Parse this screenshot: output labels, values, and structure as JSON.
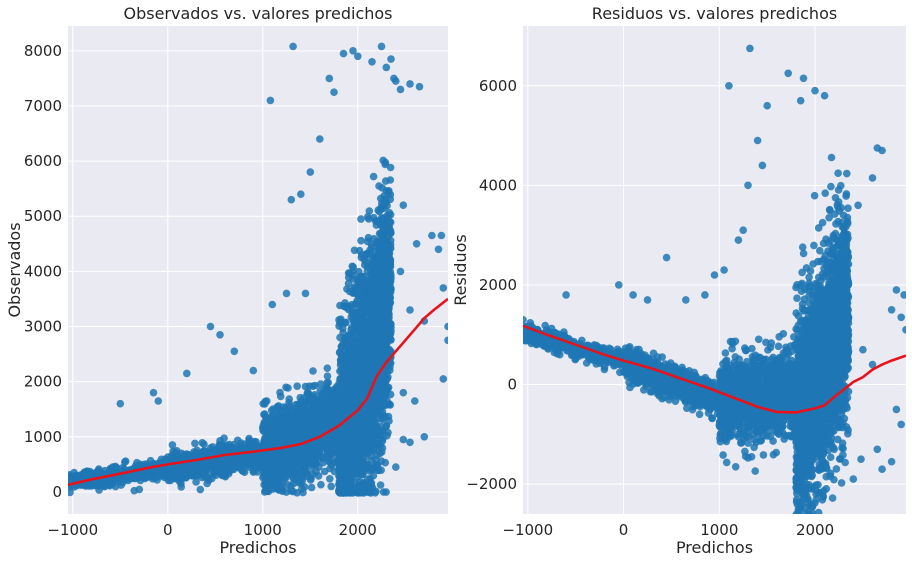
{
  "chart_data": [
    {
      "type": "scatter",
      "title": "Observados vs. valores predichos",
      "xlabel": "Predichos",
      "ylabel": "Observados",
      "xlim": [
        -1050,
        2950
      ],
      "ylim": [
        -400,
        8450
      ],
      "xticks": [
        -1000,
        0,
        1000,
        2000
      ],
      "yticks": [
        0,
        1000,
        2000,
        3000,
        4000,
        5000,
        6000,
        7000,
        8000
      ],
      "grid": true,
      "background_color": "#eaeaf2",
      "point_color": "#1f77b4",
      "line_color": "#e8121a",
      "trend_line": {
        "x": [
          -1050,
          -800,
          -500,
          -200,
          0,
          300,
          600,
          900,
          1200,
          1400,
          1600,
          1800,
          2000,
          2100,
          2200,
          2300,
          2400,
          2500,
          2600,
          2700,
          2800,
          2950
        ],
        "y": [
          130,
          230,
          330,
          440,
          500,
          580,
          670,
          730,
          800,
          870,
          1000,
          1200,
          1480,
          1700,
          2100,
          2350,
          2550,
          2750,
          2950,
          3150,
          3300,
          3500
        ]
      },
      "point_groups": [
        {
          "x_range": [
            -1050,
            0
          ],
          "y_center": "linear",
          "y_start": 200,
          "y_end": 420,
          "spread": 220,
          "count": 450
        },
        {
          "x_range": [
            0,
            1000
          ],
          "y_start": 420,
          "y_end": 700,
          "spread": 350,
          "count": 900
        },
        {
          "x_range": [
            1000,
            1800
          ],
          "y_start": 700,
          "y_end": 1300,
          "spread": 1100,
          "count": 1200
        },
        {
          "x_range": [
            1800,
            2350
          ],
          "y_start": 700,
          "y_end": 3500,
          "spread": 3000,
          "count": 2600
        }
      ],
      "extra_points": [
        [
          1320,
          8080
        ],
        [
          1700,
          7500
        ],
        [
          1750,
          7250
        ],
        [
          1850,
          7950
        ],
        [
          1950,
          8000
        ],
        [
          2000,
          7900
        ],
        [
          2150,
          7800
        ],
        [
          2250,
          8080
        ],
        [
          2350,
          7850
        ],
        [
          2300,
          7700
        ],
        [
          2380,
          7500
        ],
        [
          2400,
          7450
        ],
        [
          2450,
          7300
        ],
        [
          2550,
          7400
        ],
        [
          2650,
          7350
        ],
        [
          1080,
          7100
        ],
        [
          1600,
          6400
        ],
        [
          1500,
          5800
        ],
        [
          1400,
          5400
        ],
        [
          1300,
          5300
        ],
        [
          2480,
          5200
        ],
        [
          2450,
          4000
        ],
        [
          2620,
          4500
        ],
        [
          2780,
          4650
        ],
        [
          2880,
          4650
        ],
        [
          2850,
          4400
        ],
        [
          2900,
          3700
        ],
        [
          2550,
          3300
        ],
        [
          2700,
          3100
        ],
        [
          2950,
          3000
        ],
        [
          2950,
          2750
        ],
        [
          2900,
          2050
        ],
        [
          2480,
          1800
        ],
        [
          2600,
          1650
        ],
        [
          2700,
          1000
        ],
        [
          2550,
          900
        ],
        [
          2480,
          950
        ],
        [
          2400,
          450
        ],
        [
          1100,
          3400
        ],
        [
          1250,
          3600
        ],
        [
          1450,
          3600
        ],
        [
          550,
          2850
        ],
        [
          450,
          3000
        ],
        [
          700,
          2550
        ],
        [
          200,
          2150
        ],
        [
          900,
          2200
        ],
        [
          -150,
          1800
        ],
        [
          -100,
          1650
        ],
        [
          -500,
          1600
        ],
        [
          -950,
          280
        ]
      ]
    },
    {
      "type": "scatter",
      "title": "Residuos vs. valores predichos",
      "xlabel": "Predichos",
      "ylabel": "Residuos",
      "xlim": [
        -1050,
        2950
      ],
      "ylim": [
        -2600,
        7200
      ],
      "xticks": [
        -1000,
        0,
        1000,
        2000
      ],
      "yticks": [
        -2000,
        0,
        2000,
        4000,
        6000
      ],
      "grid": true,
      "background_color": "#eaeaf2",
      "point_color": "#1f77b4",
      "line_color": "#e8121a",
      "trend_line": {
        "x": [
          -1050,
          -800,
          -500,
          -200,
          0,
          300,
          600,
          900,
          1200,
          1400,
          1600,
          1800,
          2000,
          2100,
          2200,
          2300,
          2400,
          2500,
          2600,
          2700,
          2800,
          2950
        ],
        "y": [
          1180,
          1000,
          800,
          600,
          480,
          320,
          120,
          -80,
          -300,
          -450,
          -550,
          -560,
          -480,
          -420,
          -250,
          -100,
          50,
          150,
          300,
          400,
          480,
          580
        ]
      },
      "point_groups": [
        {
          "x_range": [
            -1050,
            0
          ],
          "y_start": 1050,
          "y_end": 450,
          "spread": 260,
          "count": 450
        },
        {
          "x_range": [
            0,
            1000
          ],
          "y_start": 450,
          "y_end": -300,
          "spread": 420,
          "count": 900
        },
        {
          "x_range": [
            1000,
            1800
          ],
          "y_start": -300,
          "y_end": -200,
          "spread": 1200,
          "count": 1200
        },
        {
          "x_range": [
            1800,
            2350
          ],
          "y_start": -900,
          "y_end": 1500,
          "spread": 2900,
          "count": 2600
        }
      ],
      "extra_points": [
        [
          1320,
          6750
        ],
        [
          1100,
          6000
        ],
        [
          1720,
          6250
        ],
        [
          1880,
          6150
        ],
        [
          2000,
          5900
        ],
        [
          2100,
          5800
        ],
        [
          1850,
          5700
        ],
        [
          1500,
          5600
        ],
        [
          1400,
          4900
        ],
        [
          1450,
          4400
        ],
        [
          1300,
          4000
        ],
        [
          2650,
          4750
        ],
        [
          2700,
          4700
        ],
        [
          2600,
          4150
        ],
        [
          2450,
          3600
        ],
        [
          2850,
          1900
        ],
        [
          2930,
          1800
        ],
        [
          2800,
          1500
        ],
        [
          2900,
          1350
        ],
        [
          2950,
          1100
        ],
        [
          2500,
          700
        ],
        [
          2600,
          400
        ],
        [
          2850,
          -500
        ],
        [
          2900,
          -800
        ],
        [
          2650,
          -1300
        ],
        [
          2800,
          -1550
        ],
        [
          2700,
          -1700
        ],
        [
          2480,
          -1500
        ],
        [
          2400,
          -1900
        ],
        [
          -50,
          2000
        ],
        [
          100,
          1800
        ],
        [
          250,
          1700
        ],
        [
          450,
          2550
        ],
        [
          -600,
          1800
        ],
        [
          -1050,
          1300
        ],
        [
          650,
          1700
        ],
        [
          850,
          1800
        ],
        [
          950,
          2200
        ],
        [
          1050,
          2300
        ],
        [
          1200,
          2900
        ],
        [
          1250,
          3100
        ]
      ]
    }
  ]
}
